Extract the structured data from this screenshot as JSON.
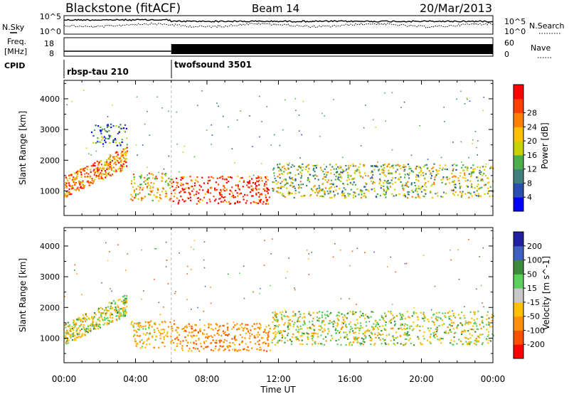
{
  "header": {
    "station": "Blackstone (fitACF)",
    "beam": "Beam 14",
    "date": "20/Mar/2013"
  },
  "noise_panel": {
    "left_label": "N.Sky",
    "right_label": "N.Search",
    "left_ticks": [
      "10^5",
      "10^0"
    ],
    "right_ticks": [
      "10^5",
      "10^0"
    ]
  },
  "freq_panel": {
    "left_label_top": "Freq.",
    "left_label_unit": "[MHz]",
    "left_ticks": [
      "18",
      "8"
    ],
    "right_label": "Nave",
    "right_ticks": [
      "60",
      "0"
    ]
  },
  "cpid_panel": {
    "label": "CPID",
    "programs": [
      {
        "name": "rbsp-tau 210",
        "start": "00:00"
      },
      {
        "name": "twofsound 3501",
        "start": "06:00"
      }
    ]
  },
  "chart_data": [
    {
      "type": "heatmap",
      "id": "power",
      "ylabel": "Slant Range [km]",
      "ylim": [
        200,
        4600
      ],
      "y_ticks": [
        1000,
        2000,
        3000,
        4000
      ],
      "x_ticks": [
        "00:00",
        "04:00",
        "08:00",
        "12:00",
        "16:00",
        "20:00",
        "00:00"
      ],
      "x_range_hours": [
        0,
        24
      ],
      "colorbar": {
        "label": "Power [dB]",
        "ticks": [
          "4",
          "8",
          "12",
          "16",
          "20",
          "24",
          "28"
        ],
        "range": [
          0,
          30
        ],
        "colors": [
          "#0000ff",
          "#2a4fb0",
          "#3f7f7f",
          "#4caf4c",
          "#c8d200",
          "#ffc000",
          "#ff8000",
          "#ff4000",
          "#ff0000"
        ]
      },
      "features": [
        {
          "t_start": 0.0,
          "t_end": 3.5,
          "range_start": 800,
          "range_end": 2400,
          "mean_power_db": 22
        },
        {
          "t_start": 3.7,
          "t_end": 6.0,
          "range_start": 700,
          "range_end": 1600,
          "mean_power_db": 18
        },
        {
          "t_start": 6.0,
          "t_end": 11.5,
          "range_start": 600,
          "range_end": 1500,
          "mean_power_db": 26
        },
        {
          "t_start": 11.6,
          "t_end": 24.0,
          "range_start": 800,
          "range_end": 1900,
          "mean_power_db": 14
        },
        {
          "t_start": 1.5,
          "t_end": 3.5,
          "range_start": 2500,
          "range_end": 3200,
          "mean_power_db": 8
        }
      ]
    },
    {
      "type": "heatmap",
      "id": "velocity",
      "ylabel": "Slant Range [km]",
      "xlabel": "Time UT",
      "ylim": [
        200,
        4600
      ],
      "y_ticks": [
        1000,
        2000,
        3000,
        4000
      ],
      "x_ticks": [
        "00:00",
        "04:00",
        "08:00",
        "12:00",
        "16:00",
        "20:00",
        "00:00"
      ],
      "x_range_hours": [
        0,
        24
      ],
      "colorbar": {
        "label": "Velocity [m s^-1]",
        "ticks": [
          "200",
          "100",
          "50",
          "15",
          "-15",
          "-50",
          "-100",
          "-200"
        ],
        "colors": [
          "#2020a0",
          "#4060c0",
          "#3c8c3c",
          "#5cd05c",
          "#c8c8c8",
          "#ffc000",
          "#ff9000",
          "#ff5000",
          "#ff0000"
        ]
      },
      "features": [
        {
          "t_start": 0.0,
          "t_end": 3.5,
          "range_start": 800,
          "range_end": 2400,
          "velocity_ms": 0
        },
        {
          "t_start": 3.7,
          "t_end": 6.0,
          "range_start": 700,
          "range_end": 1600,
          "velocity_ms": -30
        },
        {
          "t_start": 6.0,
          "t_end": 11.5,
          "range_start": 600,
          "range_end": 1500,
          "velocity_ms": -60
        },
        {
          "t_start": 11.6,
          "t_end": 24.0,
          "range_start": 800,
          "range_end": 1900,
          "velocity_ms": 0
        }
      ]
    }
  ]
}
